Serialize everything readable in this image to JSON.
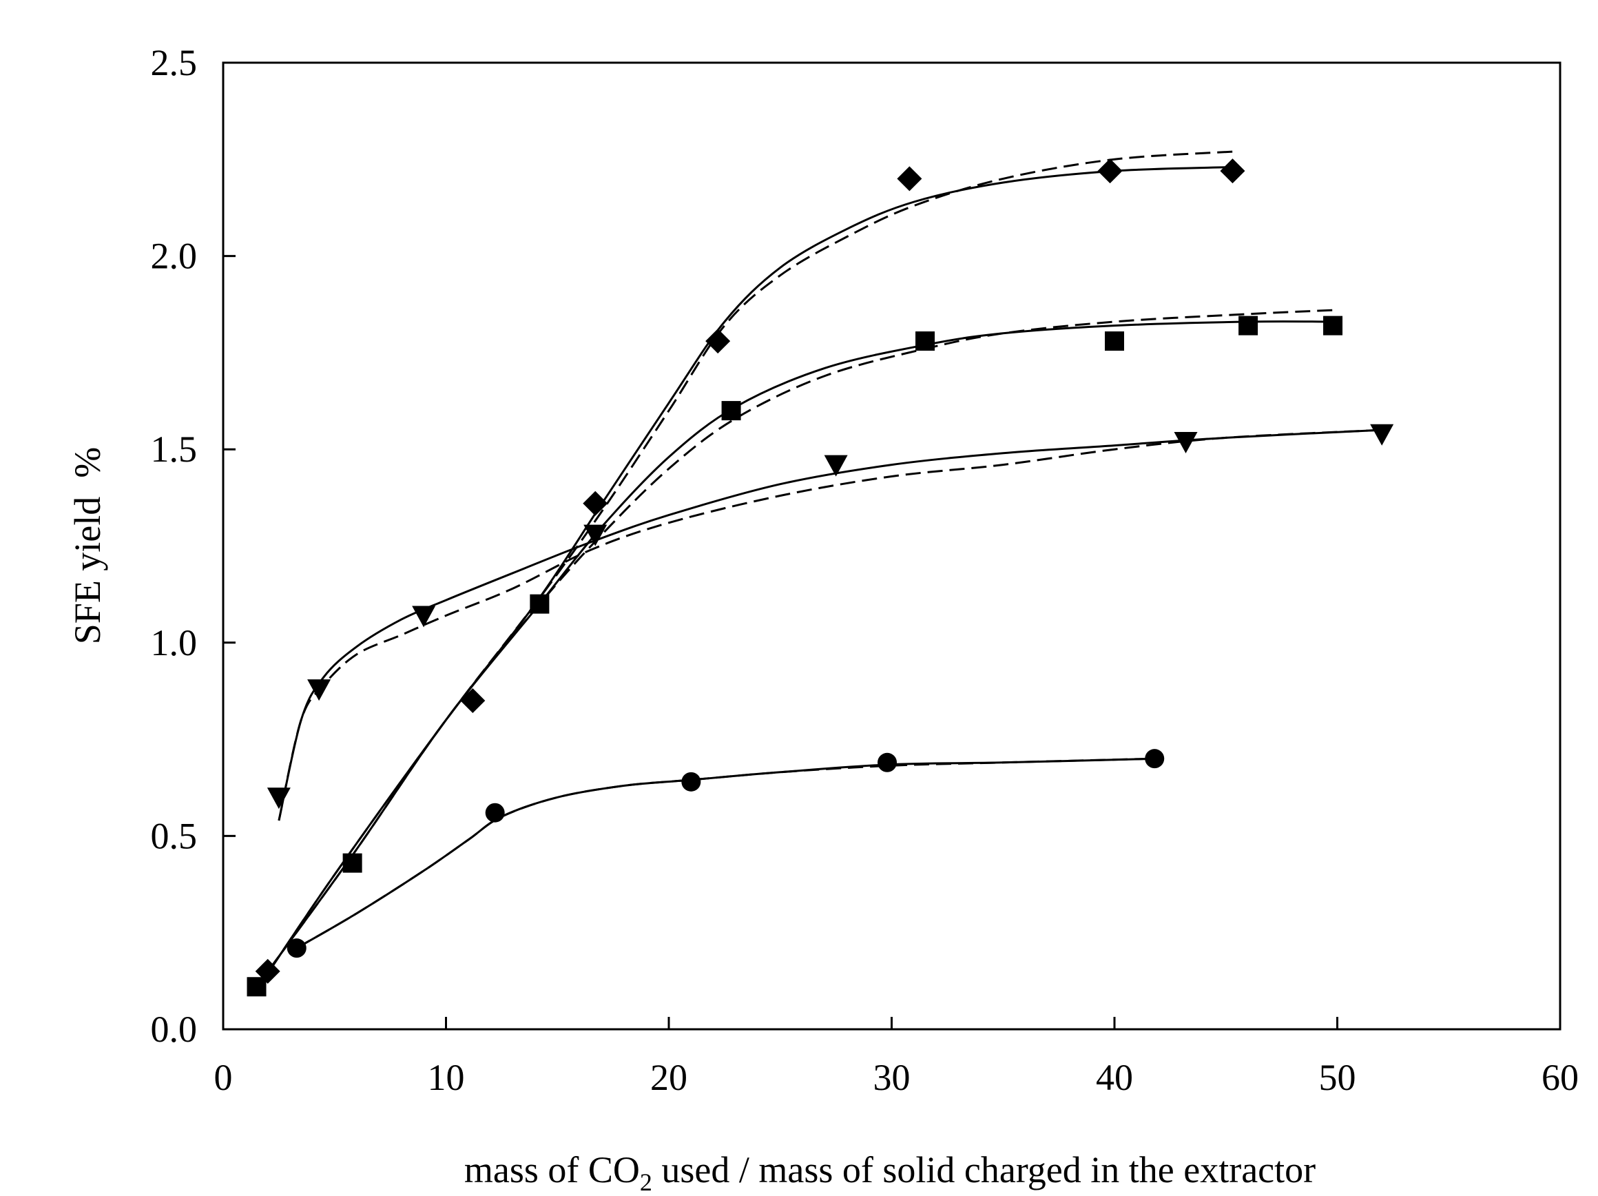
{
  "chart_data": {
    "type": "scatter",
    "title": "",
    "xlabel": {
      "before": "mass of CO",
      "subscript": "2",
      "after": " used / mass of solid charged in the extractor"
    },
    "ylabel": "SFE yield  %",
    "xlim": [
      0,
      60
    ],
    "ylim": [
      0.0,
      2.5
    ],
    "xticks": [
      0,
      10,
      20,
      30,
      40,
      50,
      60
    ],
    "yticks": [
      0.0,
      0.5,
      1.0,
      1.5,
      2.0,
      2.5
    ],
    "xtick_labels": [
      "0",
      "10",
      "20",
      "30",
      "40",
      "50",
      "60"
    ],
    "ytick_labels": [
      "0.0",
      "0.5",
      "1.0",
      "1.5",
      "2.0",
      "2.5"
    ],
    "grid": false,
    "legend": null,
    "series": [
      {
        "name": "diamond",
        "marker": "diamond",
        "points": [
          [
            2.0,
            0.15
          ],
          [
            11.2,
            0.85
          ],
          [
            16.7,
            1.36
          ],
          [
            22.2,
            1.78
          ],
          [
            30.8,
            2.2
          ],
          [
            39.8,
            2.22
          ],
          [
            45.3,
            2.22
          ]
        ],
        "fit_solid": [
          [
            1.6,
            0.11
          ],
          [
            5,
            0.4
          ],
          [
            10,
            0.8
          ],
          [
            14,
            1.1
          ],
          [
            17,
            1.36
          ],
          [
            20,
            1.62
          ],
          [
            22.5,
            1.83
          ],
          [
            25,
            1.97
          ],
          [
            28,
            2.07
          ],
          [
            31,
            2.14
          ],
          [
            35,
            2.19
          ],
          [
            40,
            2.22
          ],
          [
            45.3,
            2.23
          ]
        ],
        "fit_dashed": [
          [
            1.6,
            0.11
          ],
          [
            5,
            0.4
          ],
          [
            10,
            0.8
          ],
          [
            14,
            1.1
          ],
          [
            17,
            1.34
          ],
          [
            20,
            1.6
          ],
          [
            22.5,
            1.82
          ],
          [
            25,
            1.95
          ],
          [
            28,
            2.05
          ],
          [
            31,
            2.13
          ],
          [
            35,
            2.2
          ],
          [
            40,
            2.25
          ],
          [
            45.3,
            2.27
          ]
        ]
      },
      {
        "name": "square",
        "marker": "square",
        "points": [
          [
            1.5,
            0.11
          ],
          [
            5.8,
            0.43
          ],
          [
            14.2,
            1.1
          ],
          [
            22.8,
            1.6
          ],
          [
            31.5,
            1.78
          ],
          [
            40.0,
            1.78
          ],
          [
            46.0,
            1.82
          ],
          [
            49.8,
            1.82
          ]
        ],
        "fit_solid": [
          [
            1.5,
            0.11
          ],
          [
            5.8,
            0.45
          ],
          [
            10,
            0.8
          ],
          [
            14.2,
            1.1
          ],
          [
            17,
            1.3
          ],
          [
            20,
            1.48
          ],
          [
            23,
            1.61
          ],
          [
            27,
            1.71
          ],
          [
            31.5,
            1.77
          ],
          [
            35,
            1.8
          ],
          [
            40,
            1.82
          ],
          [
            46,
            1.83
          ],
          [
            49.8,
            1.83
          ]
        ],
        "fit_dashed": [
          [
            1.5,
            0.11
          ],
          [
            5.8,
            0.45
          ],
          [
            10,
            0.8
          ],
          [
            14.2,
            1.1
          ],
          [
            17,
            1.28
          ],
          [
            20,
            1.45
          ],
          [
            23,
            1.58
          ],
          [
            27,
            1.69
          ],
          [
            31.5,
            1.76
          ],
          [
            35,
            1.8
          ],
          [
            40,
            1.83
          ],
          [
            46,
            1.85
          ],
          [
            49.8,
            1.86
          ]
        ]
      },
      {
        "name": "triangle",
        "marker": "triangle-down",
        "points": [
          [
            2.5,
            0.6
          ],
          [
            4.3,
            0.88
          ],
          [
            9.0,
            1.07
          ],
          [
            16.7,
            1.28
          ],
          [
            27.5,
            1.46
          ],
          [
            43.2,
            1.52
          ],
          [
            52.0,
            1.54
          ]
        ],
        "fit_solid": [
          [
            2.5,
            0.54
          ],
          [
            3.5,
            0.8
          ],
          [
            4.5,
            0.91
          ],
          [
            6,
            0.99
          ],
          [
            8,
            1.06
          ],
          [
            10,
            1.11
          ],
          [
            13,
            1.18
          ],
          [
            16.5,
            1.26
          ],
          [
            20,
            1.33
          ],
          [
            25,
            1.41
          ],
          [
            30,
            1.46
          ],
          [
            35,
            1.49
          ],
          [
            40,
            1.51
          ],
          [
            45,
            1.53
          ],
          [
            52,
            1.55
          ]
        ],
        "fit_dashed": [
          [
            2.5,
            0.54
          ],
          [
            3.5,
            0.8
          ],
          [
            4.5,
            0.89
          ],
          [
            6,
            0.97
          ],
          [
            8,
            1.02
          ],
          [
            10,
            1.07
          ],
          [
            13,
            1.14
          ],
          [
            16.5,
            1.24
          ],
          [
            20,
            1.31
          ],
          [
            25,
            1.38
          ],
          [
            30,
            1.43
          ],
          [
            35,
            1.46
          ],
          [
            40,
            1.5
          ],
          [
            45,
            1.53
          ],
          [
            52,
            1.55
          ]
        ]
      },
      {
        "name": "circle",
        "marker": "circle",
        "points": [
          [
            3.3,
            0.21
          ],
          [
            12.2,
            0.56
          ],
          [
            21.0,
            0.64
          ],
          [
            29.8,
            0.69
          ],
          [
            41.8,
            0.7
          ]
        ],
        "fit_solid": [
          [
            3.3,
            0.21
          ],
          [
            6,
            0.3
          ],
          [
            9,
            0.41
          ],
          [
            11,
            0.49
          ],
          [
            12.5,
            0.55
          ],
          [
            15,
            0.6
          ],
          [
            18,
            0.63
          ],
          [
            21,
            0.645
          ],
          [
            25,
            0.665
          ],
          [
            30,
            0.685
          ],
          [
            35,
            0.69
          ],
          [
            41.8,
            0.7
          ]
        ],
        "fit_dashed": [
          [
            3.3,
            0.21
          ],
          [
            6,
            0.3
          ],
          [
            9,
            0.41
          ],
          [
            11,
            0.49
          ],
          [
            12.5,
            0.55
          ],
          [
            15,
            0.6
          ],
          [
            18,
            0.63
          ],
          [
            21,
            0.645
          ],
          [
            25,
            0.665
          ],
          [
            30,
            0.682
          ],
          [
            35,
            0.69
          ],
          [
            41.8,
            0.7
          ]
        ]
      }
    ]
  }
}
